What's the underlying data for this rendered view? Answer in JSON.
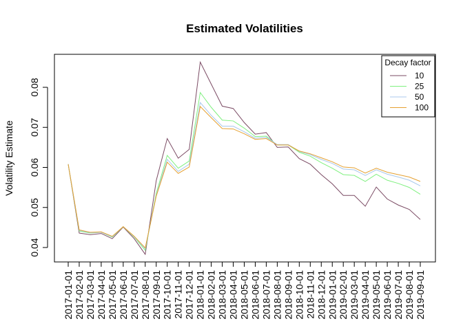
{
  "chart_data": {
    "type": "line",
    "title": "Estimated Volatilities",
    "xlabel": "",
    "ylabel": "Volatility Estimate",
    "x": [
      "2017-01-01",
      "2017-02-01",
      "2017-03-01",
      "2017-04-01",
      "2017-05-01",
      "2017-06-01",
      "2017-07-01",
      "2017-08-01",
      "2017-09-01",
      "2017-10-01",
      "2017-11-01",
      "2017-12-01",
      "2018-01-01",
      "2018-02-01",
      "2018-03-01",
      "2018-04-01",
      "2018-05-01",
      "2018-06-01",
      "2018-07-01",
      "2018-08-01",
      "2018-09-01",
      "2018-10-01",
      "2018-11-01",
      "2018-12-01",
      "2019-01-01",
      "2019-02-01",
      "2019-03-01",
      "2019-04-01",
      "2019-05-01",
      "2019-06-01",
      "2019-07-01",
      "2019-08-01",
      "2019-09-01"
    ],
    "ylim": [
      0.0375,
      0.088
    ],
    "yticks": [
      "0.04",
      "0.05",
      "0.06",
      "0.07",
      "0.08"
    ],
    "legend": {
      "title": "Decay factor",
      "position": "top-right"
    },
    "grid": false,
    "series": [
      {
        "name": "10",
        "color": "#7a4a63",
        "values": [
          0.0608,
          0.0436,
          0.0432,
          0.0435,
          0.0422,
          0.0451,
          0.0422,
          0.0383,
          0.0567,
          0.0672,
          0.0623,
          0.0645,
          0.0863,
          0.0808,
          0.0753,
          0.0747,
          0.0712,
          0.0683,
          0.0687,
          0.065,
          0.0651,
          0.0622,
          0.0608,
          0.0582,
          0.0559,
          0.053,
          0.053,
          0.0503,
          0.0551,
          0.0521,
          0.0506,
          0.0495,
          0.047
        ]
      },
      {
        "name": "25",
        "color": "#7ff07f",
        "values": [
          0.0608,
          0.0441,
          0.0436,
          0.0438,
          0.0426,
          0.0452,
          0.0426,
          0.0393,
          0.0535,
          0.063,
          0.0598,
          0.0616,
          0.0787,
          0.075,
          0.0718,
          0.0716,
          0.0698,
          0.0677,
          0.0678,
          0.0656,
          0.0656,
          0.0638,
          0.0628,
          0.0612,
          0.0598,
          0.0582,
          0.058,
          0.0565,
          0.0583,
          0.0568,
          0.056,
          0.055,
          0.0533
        ]
      },
      {
        "name": "50",
        "color": "#a8c8ec",
        "values": [
          0.0608,
          0.0443,
          0.0437,
          0.0438,
          0.0427,
          0.0452,
          0.0427,
          0.0397,
          0.053,
          0.062,
          0.059,
          0.0608,
          0.0762,
          0.073,
          0.0703,
          0.0703,
          0.0689,
          0.0673,
          0.0675,
          0.0657,
          0.0657,
          0.064,
          0.0632,
          0.062,
          0.061,
          0.0596,
          0.0594,
          0.058,
          0.0594,
          0.0583,
          0.0576,
          0.0568,
          0.0554
        ]
      },
      {
        "name": "100",
        "color": "#e5a030",
        "values": [
          0.0608,
          0.0444,
          0.0438,
          0.0439,
          0.0428,
          0.0452,
          0.0428,
          0.0399,
          0.0528,
          0.0613,
          0.0585,
          0.0601,
          0.0752,
          0.0724,
          0.0697,
          0.0696,
          0.0684,
          0.067,
          0.0672,
          0.0656,
          0.0656,
          0.0641,
          0.0634,
          0.0624,
          0.0614,
          0.0601,
          0.0599,
          0.0586,
          0.0598,
          0.0588,
          0.0582,
          0.0576,
          0.0565
        ]
      }
    ]
  }
}
